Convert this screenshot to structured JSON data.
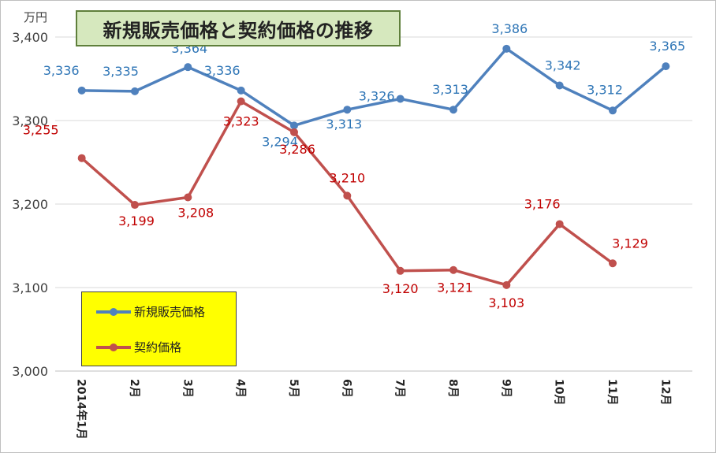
{
  "chart_data": {
    "type": "line",
    "title": "新規販売価格と契約価格の推移",
    "unit_label": "万円",
    "categories": [
      "2014年1月",
      "2月",
      "3月",
      "4月",
      "5月",
      "6月",
      "7月",
      "8月",
      "9月",
      "10月",
      "11月",
      "12月"
    ],
    "ylim": [
      3000,
      3400
    ],
    "yticks": [
      3000,
      3100,
      3200,
      3300,
      3400
    ],
    "ytick_labels": [
      "3,000",
      "3,100",
      "3,200",
      "3,300",
      "3,400"
    ],
    "grid": true,
    "legend_position": "bottom-left",
    "series": [
      {
        "name": "新規販売価格",
        "color": "#4f81bd",
        "label_color": "#2e75b6",
        "values": [
          3336,
          3335,
          3364,
          3336,
          3294,
          3313,
          3326,
          3313,
          3386,
          3342,
          3312,
          3365
        ],
        "labels": [
          "3,336",
          "3,335",
          "3,364",
          "3,336",
          "3,294",
          "3,313",
          "3,326",
          "3,313",
          "3,386",
          "3,342",
          "3,312",
          "3,365"
        ]
      },
      {
        "name": "契約価格",
        "color": "#c0504d",
        "label_color": "#c00000",
        "values": [
          3255,
          3199,
          3208,
          3323,
          3286,
          3210,
          3120,
          3121,
          3103,
          3176,
          3129,
          null
        ],
        "labels": [
          "3,255",
          "3,199",
          "3,208",
          "3,323",
          "3,286",
          "3,210",
          "3,120",
          "3,121",
          "3,103",
          "3,176",
          "3,129",
          null
        ]
      }
    ]
  }
}
